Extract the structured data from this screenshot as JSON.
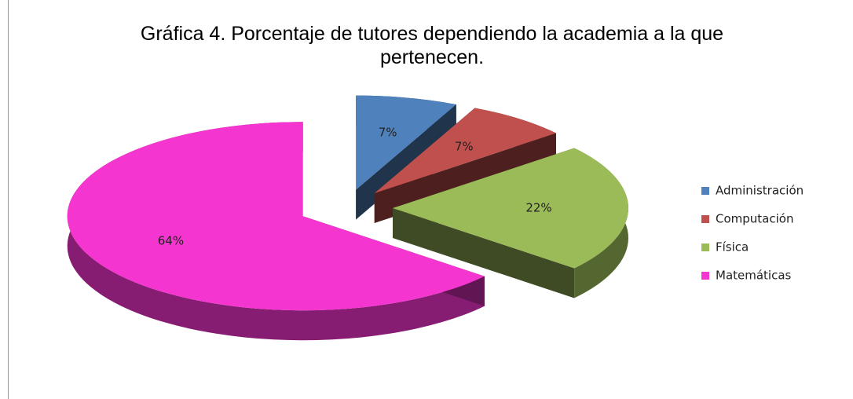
{
  "chart_data": {
    "type": "pie",
    "title": "Gráfica 4. Porcentaje de tutores dependiendo la academia a la que pertenecen.",
    "categories": [
      "Administración",
      "Computación",
      "Física",
      "Matemáticas"
    ],
    "values": [
      7,
      7,
      22,
      64
    ],
    "value_labels": [
      "7%",
      "7%",
      "22%",
      "64%"
    ],
    "colors": [
      "#4f81bd",
      "#c0504d",
      "#9bbb59",
      "#f535cf"
    ],
    "legend": "right"
  }
}
